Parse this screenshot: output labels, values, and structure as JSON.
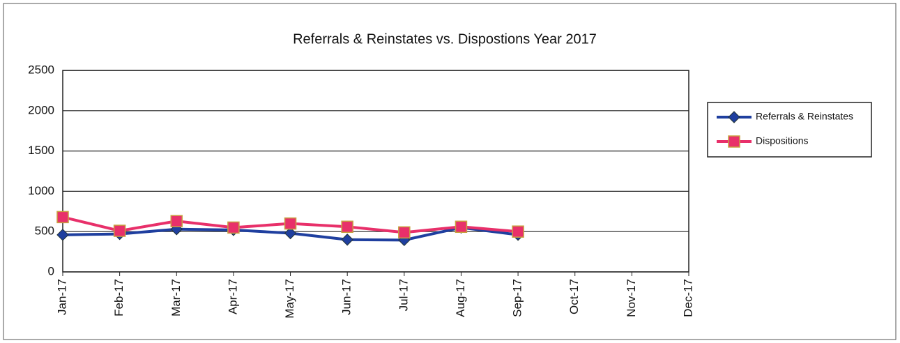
{
  "chart_data": {
    "type": "line",
    "title": "Referrals & Reinstates vs. Dispostions  Year 2017",
    "categories": [
      "Jan-17",
      "Feb-17",
      "Mar-17",
      "Apr-17",
      "May-17",
      "Jun-17",
      "Jul-17",
      "Aug-17",
      "Sep-17",
      "Oct-17",
      "Nov-17",
      "Dec-17"
    ],
    "series": [
      {
        "name": "Referrals & Reinstates",
        "color": "#1f3f9f",
        "marker": "diamond",
        "values": [
          460,
          470,
          530,
          520,
          480,
          400,
          395,
          550,
          460,
          null,
          null,
          null
        ]
      },
      {
        "name": "Dispositions",
        "color": "#e8306a",
        "marker": "square",
        "values": [
          680,
          510,
          630,
          550,
          600,
          560,
          490,
          560,
          500,
          null,
          null,
          null
        ]
      }
    ],
    "ylim": [
      0,
      2500
    ],
    "yticks": [
      0,
      500,
      1000,
      1500,
      2000,
      2500
    ],
    "grid": true,
    "legend": "right"
  }
}
